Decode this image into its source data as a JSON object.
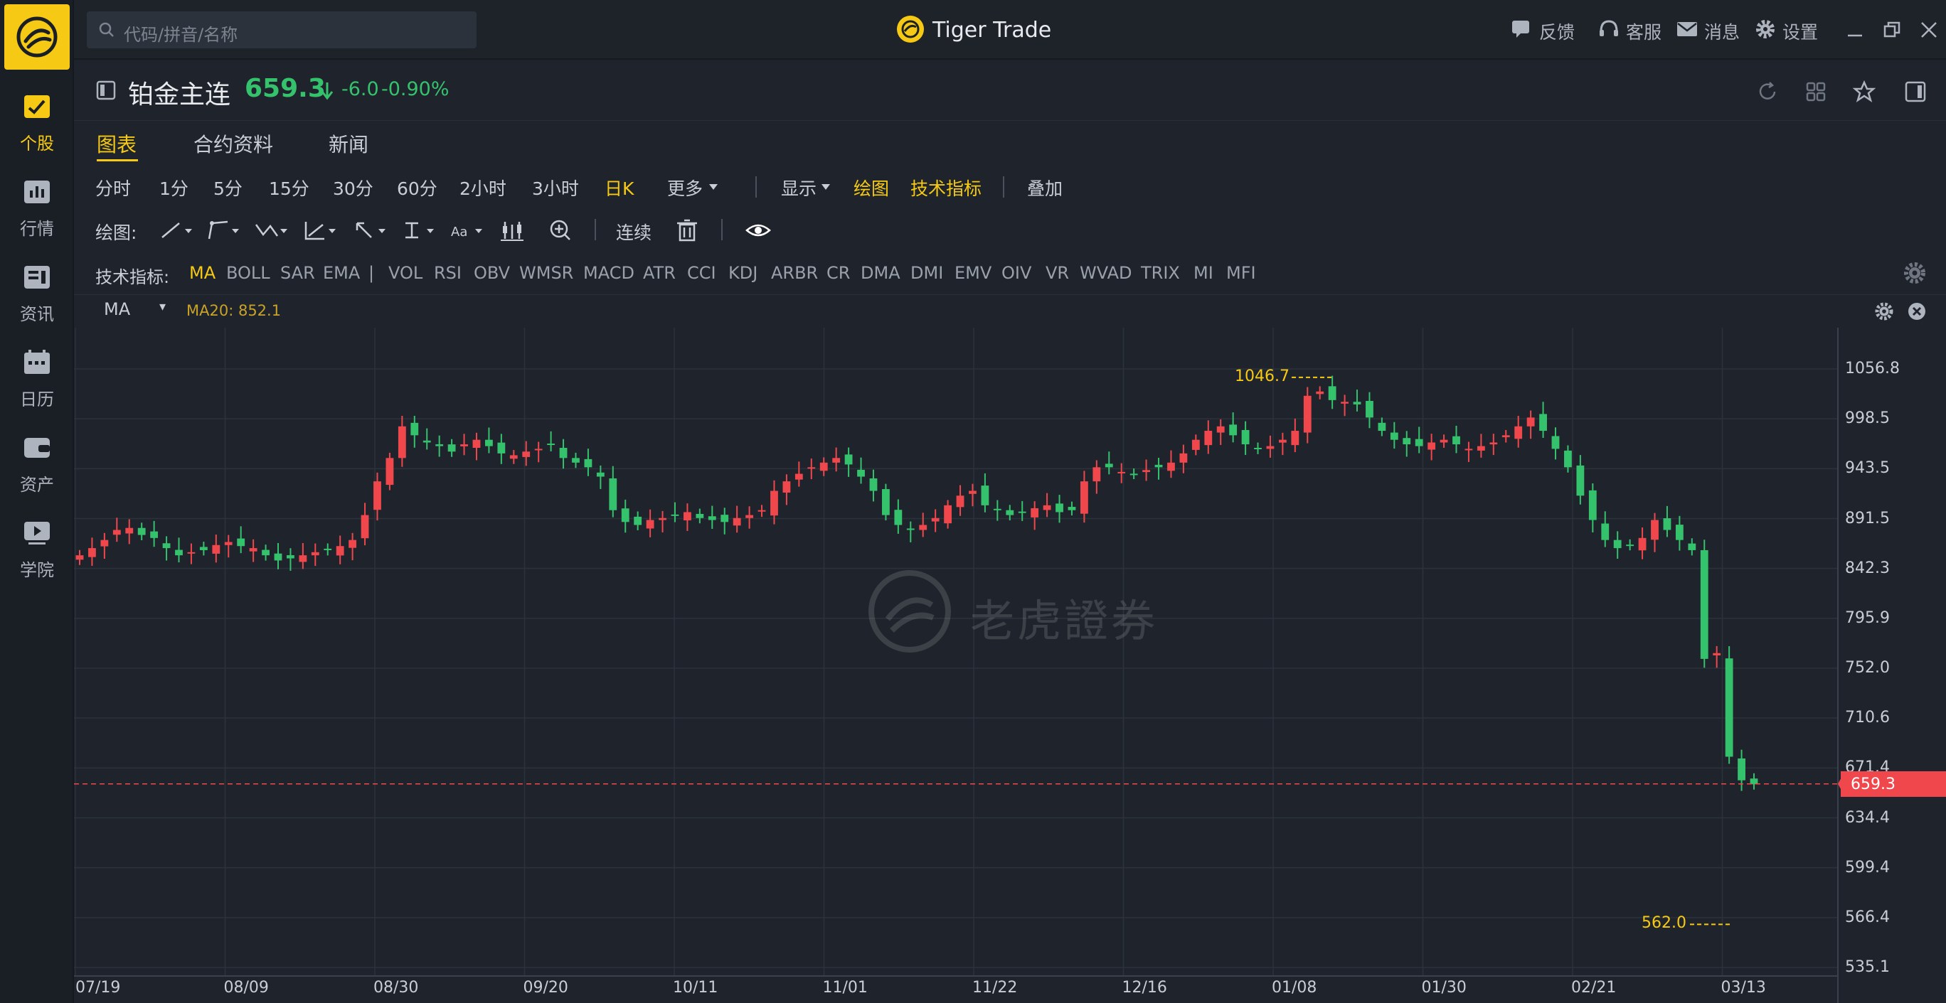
{
  "app": {
    "title": "Tiger Trade"
  },
  "search": {
    "placeholder": "代码/拼音/名称"
  },
  "topbar": {
    "feedback": "反馈",
    "support": "客服",
    "messages": "消息",
    "settings": "设置"
  },
  "sidebar": {
    "items": [
      {
        "label": "个股",
        "icon": "stock-chart-icon",
        "active": true
      },
      {
        "label": "行情",
        "icon": "market-icon"
      },
      {
        "label": "资讯",
        "icon": "news-icon"
      },
      {
        "label": "日历",
        "icon": "calendar-icon"
      },
      {
        "label": "资产",
        "icon": "wallet-icon"
      },
      {
        "label": "学院",
        "icon": "video-icon"
      }
    ]
  },
  "quote": {
    "name": "铂金主连",
    "price": "659.3",
    "change": "-6.0",
    "change_pct": "-0.90%",
    "direction_icon": "down-arrow-icon",
    "color": "#35c26d"
  },
  "tabs": [
    "图表",
    "合约资料",
    "新闻"
  ],
  "periods": [
    "分时",
    "1分",
    "5分",
    "15分",
    "30分",
    "60分",
    "2小时",
    "3小时",
    "日K",
    "更多"
  ],
  "period_active": "日K",
  "chart_menu": {
    "display": "显示",
    "draw": "绘图",
    "indicators": "技术指标",
    "overlay": "叠加"
  },
  "drawbar": {
    "label": "绘图:",
    "continuous": "连续"
  },
  "indicators": {
    "label": "技术指标:",
    "items": [
      "MA",
      "BOLL",
      "SAR",
      "EMA",
      "|",
      "VOL",
      "RSI",
      "OBV",
      "WMSR",
      "MACD",
      "ATR",
      "CCI",
      "KDJ",
      "ARBR",
      "CR",
      "DMA",
      "DMI",
      "EMV",
      "OIV",
      "VR",
      "WVAD",
      "TRIX",
      "MI",
      "MFI"
    ],
    "active": "MA"
  },
  "ma_row": {
    "select": "MA",
    "value": "MA20: 852.1"
  },
  "watermark": "老虎證券",
  "colors": {
    "up": "#f0474d",
    "down": "#35c26d",
    "accent": "#f6c914",
    "bg": "#1f242c"
  },
  "chart_data": {
    "type": "candlestick",
    "y_ticks": [
      "1056.8",
      "998.5",
      "943.5",
      "891.5",
      "842.3",
      "795.9",
      "752.0",
      "710.6",
      "671.4",
      "634.4",
      "599.4",
      "566.4",
      "535.1"
    ],
    "x_ticks": [
      "07/19",
      "08/09",
      "08/30",
      "09/20",
      "10/11",
      "11/01",
      "11/22",
      "12/16",
      "01/08",
      "01/30",
      "02/21",
      "03/13"
    ],
    "ylim": [
      535.1,
      1056.8
    ],
    "y_scale": "log",
    "last_price": "659.3",
    "high_label": "1046.7",
    "low_label": "562.0",
    "grid": true,
    "candles_close": [
      855,
      862,
      870,
      880,
      882,
      875,
      872,
      862,
      855,
      858,
      860,
      865,
      868,
      864,
      862,
      855,
      850,
      852,
      855,
      858,
      860,
      864,
      870,
      895,
      930,
      955,
      990,
      980,
      972,
      968,
      962,
      970,
      975,
      968,
      960,
      958,
      962,
      965,
      970,
      955,
      950,
      945,
      935,
      900,
      888,
      885,
      890,
      892,
      895,
      898,
      892,
      890,
      888,
      892,
      895,
      900,
      920,
      930,
      938,
      945,
      950,
      955,
      948,
      935,
      920,
      895,
      885,
      880,
      885,
      892,
      905,
      915,
      920,
      905,
      900,
      895,
      898,
      902,
      905,
      898,
      900,
      930,
      945,
      945,
      940,
      938,
      942,
      945,
      950,
      960,
      975,
      985,
      990,
      980,
      970,
      965,
      968,
      975,
      985,
      1025,
      1030,
      1020,
      1018,
      1015,
      1000,
      985,
      975,
      970,
      968,
      972,
      975,
      970,
      965,
      968,
      972,
      980,
      990,
      1000,
      985,
      965,
      945,
      915,
      890,
      870,
      862,
      865,
      872,
      890,
      880,
      870,
      860,
      760,
      765,
      680,
      662,
      659
    ]
  }
}
